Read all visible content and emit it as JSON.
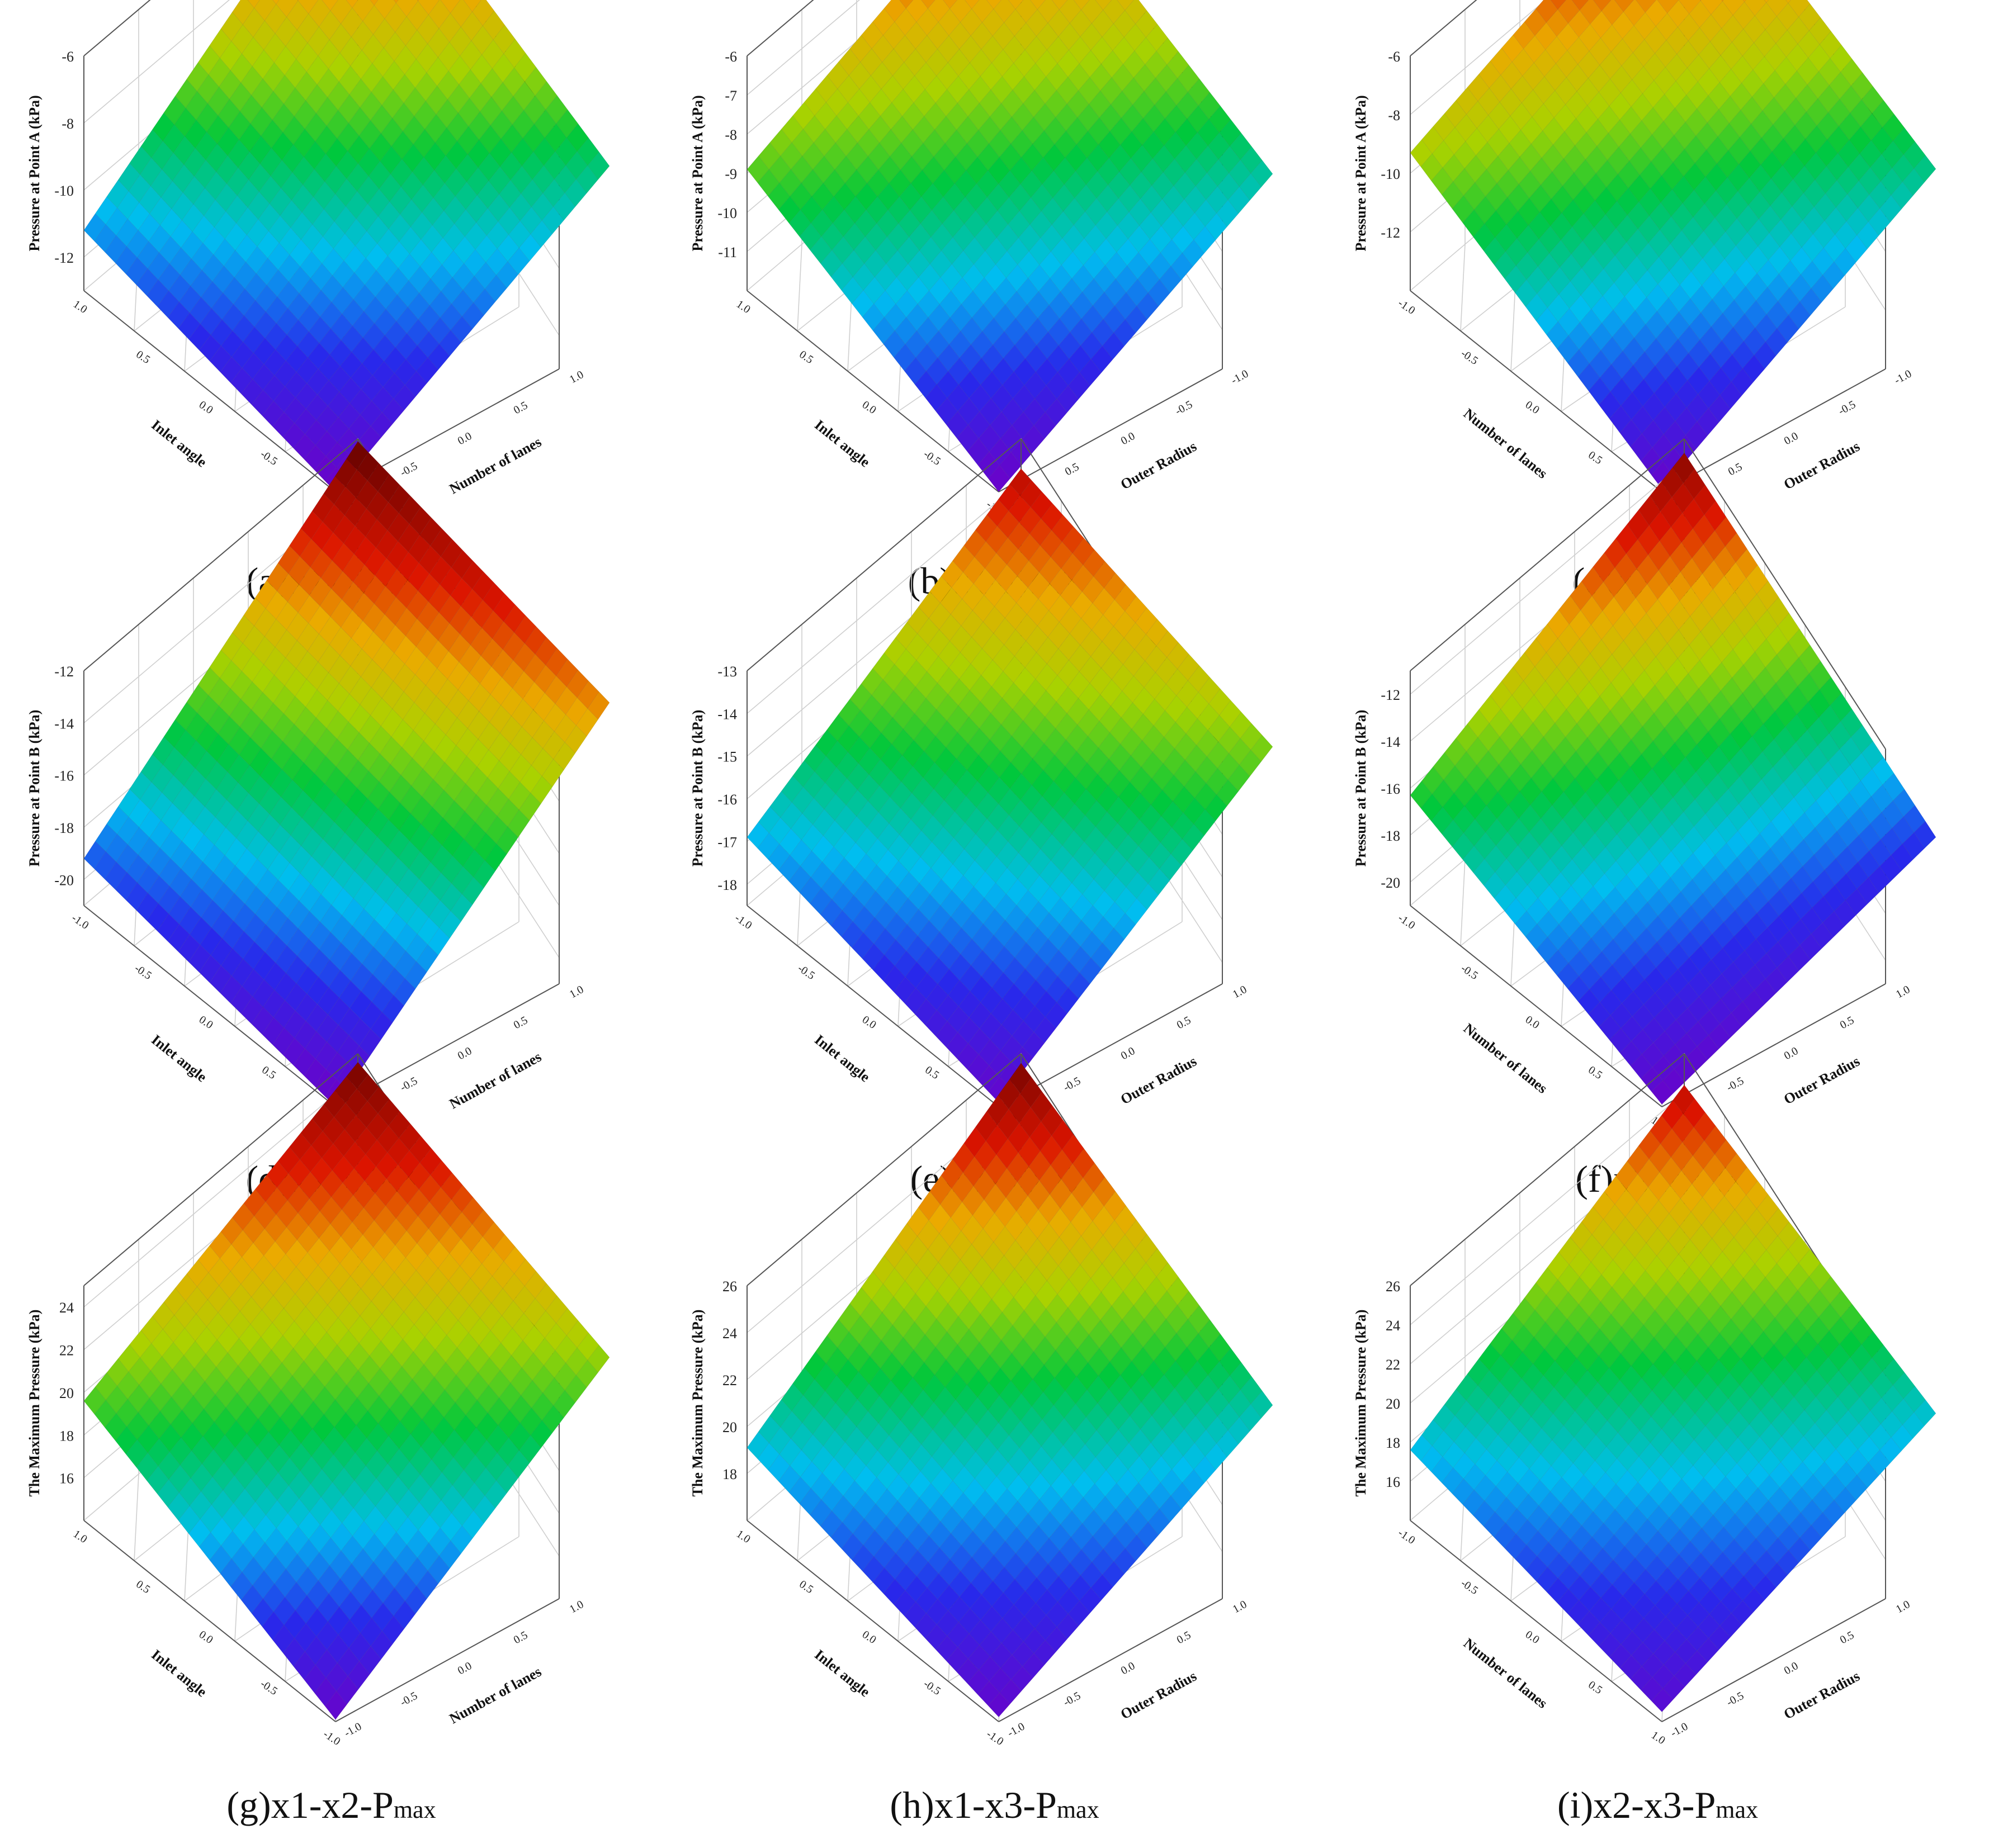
{
  "figure": {
    "panels": [
      {
        "caption_main": "(a)x1-x2-A",
        "caption_sub": ""
      },
      {
        "caption_main": "(b)x1-x3-A",
        "caption_sub": ""
      },
      {
        "caption_main": "(c)x2-x3-A",
        "caption_sub": ""
      },
      {
        "caption_main": "(d)x1-x2-B",
        "caption_sub": ""
      },
      {
        "caption_main": "(e)x1-x3-B",
        "caption_sub": ""
      },
      {
        "caption_main": "(f)x2-x3-B",
        "caption_sub": ""
      },
      {
        "caption_main": "(g)x1-x2-P",
        "caption_sub": "max"
      },
      {
        "caption_main": "(h)x1-x3-P",
        "caption_sub": "max"
      },
      {
        "caption_main": "(i)x2-x3-P",
        "caption_sub": "max"
      }
    ]
  },
  "chart_data": [
    {
      "type": "surface",
      "xlabel": "Inlet angle",
      "ylabel": "Number of lanes",
      "zlabel": "Pressure at Point A (kPa)",
      "xlim": [
        -1,
        1
      ],
      "ylim": [
        -1,
        1
      ],
      "zlim": [
        -13,
        -6
      ],
      "x_ticks": [
        "1.0",
        "0.5",
        "0.0",
        "-0.5",
        "-1.0"
      ],
      "y_ticks": [
        "1.0",
        "0.5",
        "0.0",
        "-0.5",
        "-1.0"
      ],
      "z_ticks": [
        "-12",
        "-10",
        "-8",
        "-6"
      ],
      "corners": {
        "left": -11.2,
        "back": -6.1,
        "right": -10.2,
        "front": -13.0
      },
      "colormap": "rainbow"
    },
    {
      "type": "surface",
      "xlabel": "Inlet angle",
      "ylabel": "Outer Radius",
      "zlabel": "Pressure at Point A (kPa)",
      "xlim": [
        -1,
        1
      ],
      "ylim": [
        -1,
        1
      ],
      "zlim": [
        -12,
        -6
      ],
      "x_ticks": [
        "1.0",
        "0.5",
        "0.0",
        "-0.5",
        "-1.0"
      ],
      "y_ticks": [
        "-1.0",
        "-0.5",
        "0.0",
        "0.5",
        "1.0"
      ],
      "z_ticks": [
        "-11",
        "-10",
        "-9",
        "-8",
        "-7",
        "-6"
      ],
      "corners": {
        "left": -8.9,
        "back": -6.6,
        "right": -9.8,
        "front": -12.0
      },
      "colormap": "rainbow"
    },
    {
      "type": "surface",
      "xlabel": "Number of lanes",
      "ylabel": "Outer Radius",
      "zlabel": "Pressure at Point A (kPa)",
      "xlim": [
        -1,
        1
      ],
      "ylim": [
        -1,
        1
      ],
      "zlim": [
        -14,
        -6
      ],
      "x_ticks": [
        "-1.0",
        "-0.5",
        "0.0",
        "0.5",
        "1.0"
      ],
      "y_ticks": [
        "-1.0",
        "-0.5",
        "0.0",
        "0.5",
        "1.0"
      ],
      "z_ticks": [
        "-12",
        "-10",
        "-8",
        "-6"
      ],
      "corners": {
        "left": -9.3,
        "back": -6.5,
        "right": -10.9,
        "front": -13.9
      },
      "colormap": "rainbow"
    },
    {
      "type": "surface",
      "xlabel": "Inlet angle",
      "ylabel": "Number of lanes",
      "zlabel": "Pressure at Point B (kPa)",
      "xlim": [
        -1,
        1
      ],
      "ylim": [
        -1,
        1
      ],
      "zlim": [
        -21,
        -12
      ],
      "x_ticks": [
        "-1.0",
        "-0.5",
        "0.0",
        "0.5",
        "1.0"
      ],
      "y_ticks": [
        "1.0",
        "0.5",
        "0.0",
        "-0.5",
        "-1.0"
      ],
      "z_ticks": [
        "-20",
        "-18",
        "-16",
        "-14",
        "-12"
      ],
      "corners": {
        "left": -19.2,
        "back": -12.1,
        "right": -14.4,
        "front": -21.0
      },
      "colormap": "rainbow"
    },
    {
      "type": "surface",
      "xlabel": "Inlet angle",
      "ylabel": "Outer Radius",
      "zlabel": "Pressure at Point B (kPa)",
      "xlim": [
        -1,
        1
      ],
      "ylim": [
        -1,
        1
      ],
      "zlim": [
        -18.5,
        -13
      ],
      "x_ticks": [
        "-1.0",
        "-0.5",
        "0.0",
        "0.5",
        "1.0"
      ],
      "y_ticks": [
        "1.0",
        "0.5",
        "0.0",
        "-0.5",
        "-1.0"
      ],
      "z_ticks": [
        "-18",
        "-17",
        "-16",
        "-15",
        "-14",
        "-13"
      ],
      "corners": {
        "left": -16.9,
        "back": -13.7,
        "right": -15.5,
        "front": -18.4
      },
      "colormap": "rainbow"
    },
    {
      "type": "surface",
      "xlabel": "Number of lanes",
      "ylabel": "Outer Radius",
      "zlabel": "Pressure at Point B (kPa)",
      "xlim": [
        -1,
        1
      ],
      "ylim": [
        -1,
        1
      ],
      "zlim": [
        -21,
        -11
      ],
      "x_ticks": [
        "-1.0",
        "-0.5",
        "0.0",
        "0.5",
        "1.0"
      ],
      "y_ticks": [
        "1.0",
        "0.5",
        "0.0",
        "-0.5",
        "-1.0"
      ],
      "z_ticks": [
        "-20",
        "-18",
        "-16",
        "-14",
        "-12"
      ],
      "corners": {
        "left": -16.3,
        "back": -11.6,
        "right": -19.4,
        "front": -20.9
      },
      "colormap": "rainbow"
    },
    {
      "type": "surface",
      "xlabel": "Inlet angle",
      "ylabel": "Number of lanes",
      "zlabel": "The Maximum Pressure (kPa)",
      "xlim": [
        -1,
        1
      ],
      "ylim": [
        -1,
        1
      ],
      "zlim": [
        14,
        25
      ],
      "x_ticks": [
        "1.0",
        "0.5",
        "0.0",
        "-0.5",
        "-1.0"
      ],
      "y_ticks": [
        "1.0",
        "0.5",
        "0.0",
        "-0.5",
        "-1.0"
      ],
      "z_ticks": [
        "16",
        "18",
        "20",
        "22",
        "24"
      ],
      "corners": {
        "left": 19.6,
        "back": 24.6,
        "right": 20.2,
        "front": 14.1
      },
      "colormap": "rainbow"
    },
    {
      "type": "surface",
      "xlabel": "Inlet angle",
      "ylabel": "Outer Radius",
      "zlabel": "The Maximum Pressure (kPa)",
      "xlim": [
        -1,
        1
      ],
      "ylim": [
        -1,
        1
      ],
      "zlim": [
        16,
        26
      ],
      "x_ticks": [
        "1.0",
        "0.5",
        "0.0",
        "-0.5",
        "-1.0"
      ],
      "y_ticks": [
        "1.0",
        "0.5",
        "0.0",
        "-0.5",
        "-1.0"
      ],
      "z_ticks": [
        "18",
        "20",
        "22",
        "24",
        "26"
      ],
      "corners": {
        "left": 19.1,
        "back": 25.6,
        "right": 19.6,
        "front": 16.2
      },
      "colormap": "rainbow"
    },
    {
      "type": "surface",
      "xlabel": "Number of lanes",
      "ylabel": "Outer Radius",
      "zlabel": "The Maximum Pressure (kPa)",
      "xlim": [
        -1,
        1
      ],
      "ylim": [
        -1,
        1
      ],
      "zlim": [
        14,
        26
      ],
      "x_ticks": [
        "-1.0",
        "-0.5",
        "0.0",
        "0.5",
        "1.0"
      ],
      "y_ticks": [
        "1.0",
        "0.5",
        "0.0",
        "-0.5",
        "-1.0"
      ],
      "z_ticks": [
        "16",
        "18",
        "20",
        "22",
        "24",
        "26"
      ],
      "corners": {
        "left": 17.6,
        "back": 24.4,
        "right": 17.9,
        "front": 14.5
      },
      "colormap": "rainbow"
    }
  ]
}
